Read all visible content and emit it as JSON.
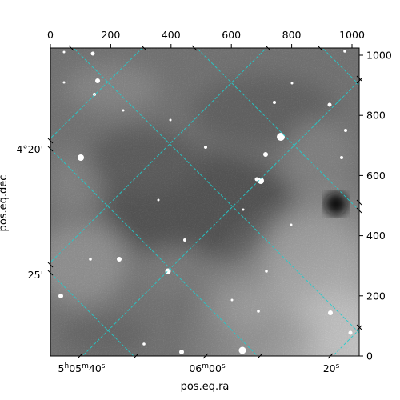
{
  "figure": {
    "x_title": "pos.eq.ra",
    "y_title": "pos.eq.dec"
  },
  "chart_data": {
    "type": "heatmap",
    "image_kind": "grayscale astronomical sky image with celestial coordinate grid",
    "pixel_axes": {
      "x_range": [
        0,
        1024
      ],
      "y_range": [
        0,
        1024
      ],
      "top_ticks": [
        "0",
        "200",
        "400",
        "600",
        "800",
        "1000"
      ],
      "right_ticks": [
        "0",
        "200",
        "400",
        "600",
        "800",
        "1000"
      ]
    },
    "world_axes": {
      "ra_tick_labels": [
        {
          "h": "5",
          "m": "05",
          "s": "40"
        },
        {
          "m": "06",
          "s": "00"
        },
        {
          "s": "20"
        }
      ],
      "dec_tick_labels": [
        {
          "deg": "4",
          "min": "20"
        },
        {
          "min": "25"
        }
      ]
    },
    "grid": true,
    "grid_color": "#22cccc",
    "colormap": "gray"
  }
}
